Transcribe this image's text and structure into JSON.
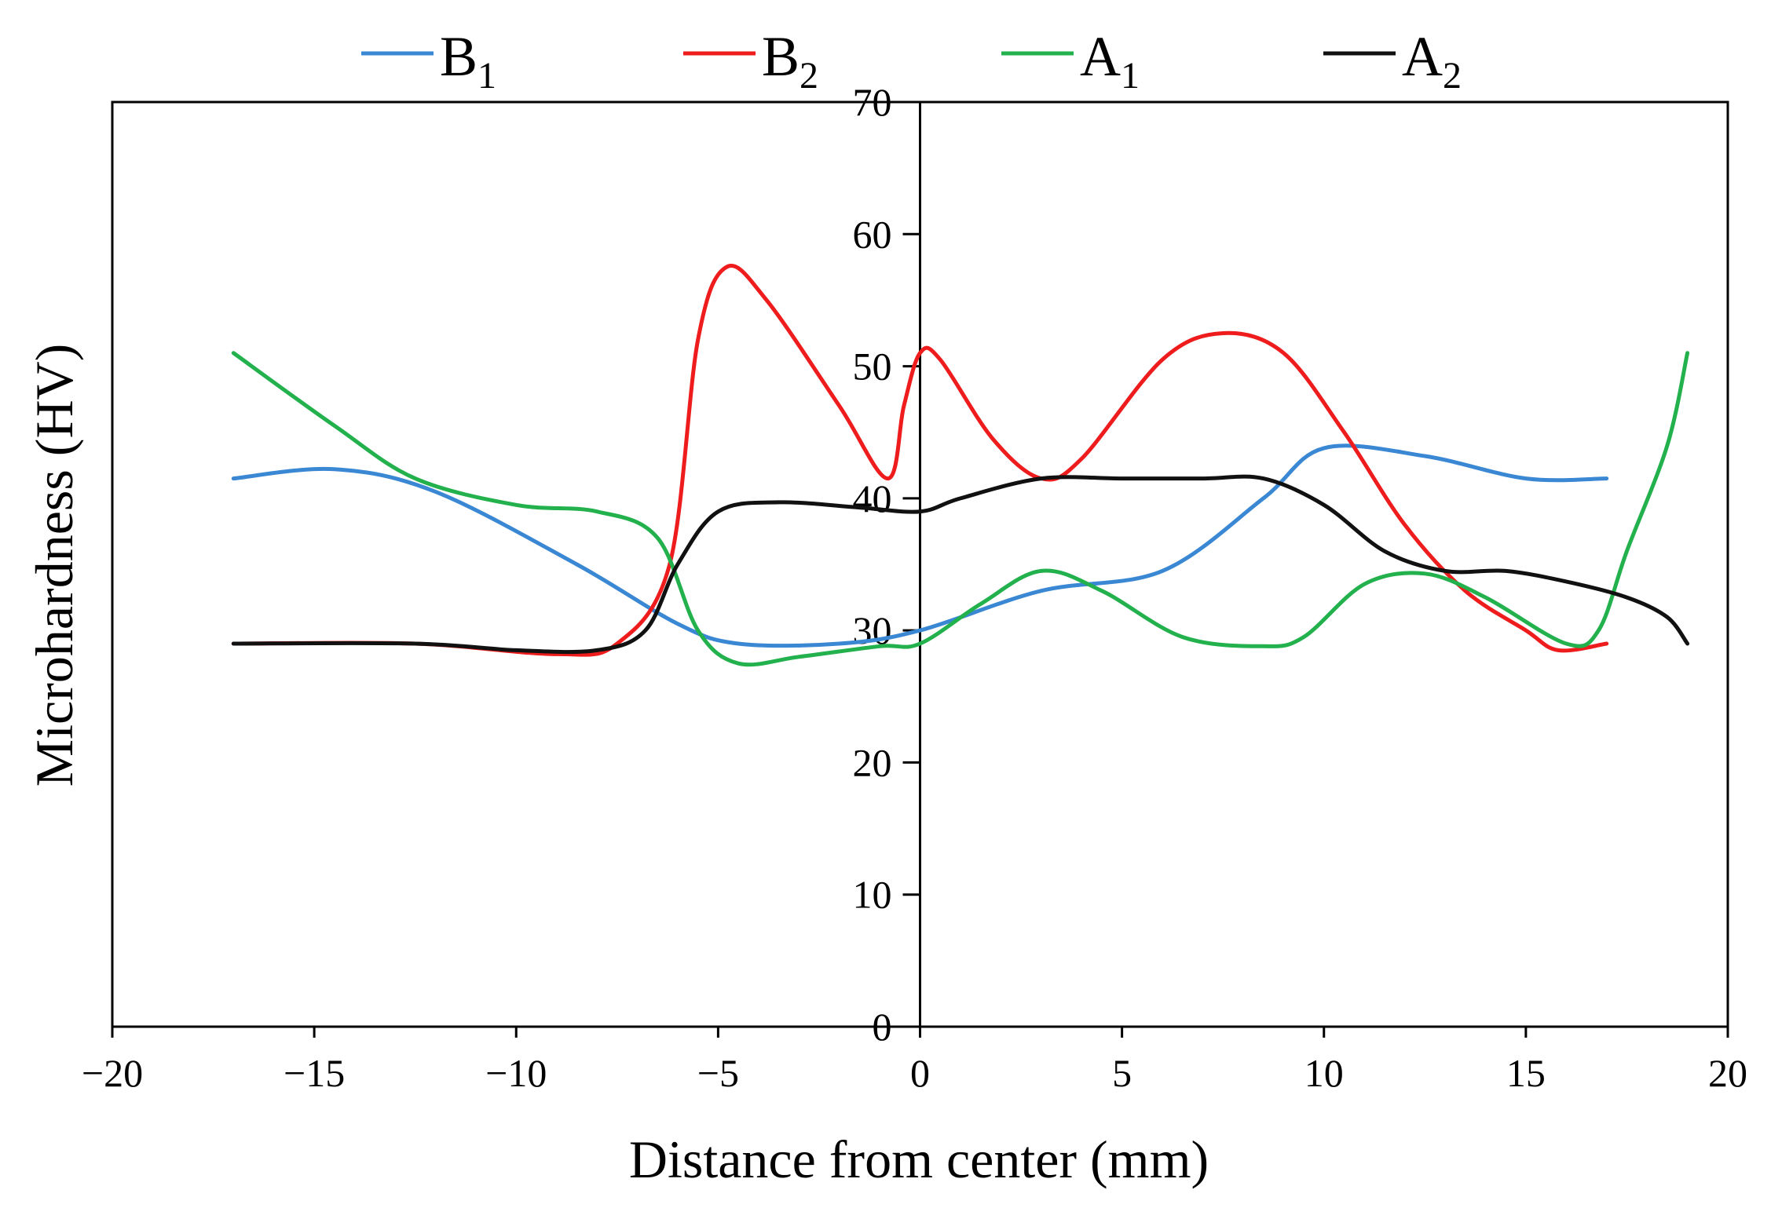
{
  "chart_data": {
    "type": "line",
    "title": "",
    "xlabel": "Distance  from center (mm)",
    "ylabel": "Microhardness (HV)",
    "xlim": [
      -20,
      20
    ],
    "ylim": [
      0,
      70
    ],
    "x_ticks": [
      -20,
      -15,
      -10,
      -5,
      0,
      5,
      10,
      15,
      20
    ],
    "x_tick_labels": [
      "−20",
      "−15",
      "−10",
      "−5",
      "0",
      "5",
      "10",
      "15",
      "20"
    ],
    "y_ticks": [
      0,
      10,
      20,
      30,
      40,
      50,
      60,
      70
    ],
    "y_tick_labels": [
      "0",
      "10",
      "20",
      "30",
      "40",
      "50",
      "60",
      "70"
    ],
    "grid": false,
    "legend_position": "top",
    "series": [
      {
        "name": "B",
        "subscript": "1",
        "color": "#3a87d4",
        "points": [
          [
            -17,
            41.5
          ],
          [
            -14.5,
            42.2
          ],
          [
            -12,
            40.5
          ],
          [
            -8.5,
            35
          ],
          [
            -6,
            30.5
          ],
          [
            -4.5,
            29
          ],
          [
            -2,
            29
          ],
          [
            0,
            30
          ],
          [
            3,
            33
          ],
          [
            6,
            34.5
          ],
          [
            8.5,
            40
          ],
          [
            10,
            43.8
          ],
          [
            12.5,
            43.2
          ],
          [
            15,
            41.5
          ],
          [
            17,
            41.5
          ]
        ]
      },
      {
        "name": "B",
        "subscript": "2",
        "color": "#ee1c1c",
        "points": [
          [
            -17,
            29
          ],
          [
            -12.5,
            29
          ],
          [
            -9,
            28.2
          ],
          [
            -7.5,
            29
          ],
          [
            -6.2,
            35
          ],
          [
            -5.5,
            52
          ],
          [
            -4.8,
            57.5
          ],
          [
            -3.8,
            55
          ],
          [
            -2,
            47
          ],
          [
            -0.8,
            41.5
          ],
          [
            -0.4,
            47
          ],
          [
            0,
            51
          ],
          [
            0.5,
            50.5
          ],
          [
            1.8,
            44.5
          ],
          [
            3,
            41.5
          ],
          [
            4,
            43
          ],
          [
            6,
            50.5
          ],
          [
            7.5,
            52.5
          ],
          [
            9,
            51
          ],
          [
            10.5,
            45
          ],
          [
            12,
            38
          ],
          [
            13.5,
            33
          ],
          [
            15,
            30
          ],
          [
            15.8,
            28.5
          ],
          [
            17,
            29
          ]
        ]
      },
      {
        "name": "A",
        "subscript": "1",
        "color": "#22b14c",
        "points": [
          [
            -17,
            51
          ],
          [
            -14.5,
            45.5
          ],
          [
            -12.5,
            41.5
          ],
          [
            -10,
            39.5
          ],
          [
            -8,
            39
          ],
          [
            -6.5,
            37
          ],
          [
            -5.5,
            30
          ],
          [
            -4.5,
            27.5
          ],
          [
            -3,
            28
          ],
          [
            -1,
            28.8
          ],
          [
            0,
            29
          ],
          [
            1.5,
            32
          ],
          [
            3,
            34.5
          ],
          [
            4.5,
            33
          ],
          [
            6.5,
            29.5
          ],
          [
            8.5,
            28.8
          ],
          [
            9.5,
            29.5
          ],
          [
            11,
            33.5
          ],
          [
            12.5,
            34.3
          ],
          [
            14,
            32.5
          ],
          [
            16,
            29
          ],
          [
            16.8,
            30
          ],
          [
            17.5,
            36
          ],
          [
            18.5,
            44
          ],
          [
            19,
            51
          ]
        ]
      },
      {
        "name": "A",
        "subscript": "2",
        "color": "#111111",
        "points": [
          [
            -17,
            29
          ],
          [
            -12.5,
            29
          ],
          [
            -10,
            28.5
          ],
          [
            -8,
            28.5
          ],
          [
            -6.8,
            30
          ],
          [
            -6,
            35
          ],
          [
            -5,
            39
          ],
          [
            -3.5,
            39.7
          ],
          [
            -1.5,
            39.3
          ],
          [
            0,
            39
          ],
          [
            1,
            40
          ],
          [
            3,
            41.5
          ],
          [
            5,
            41.5
          ],
          [
            7,
            41.5
          ],
          [
            8.5,
            41.5
          ],
          [
            10,
            39.5
          ],
          [
            11.5,
            36
          ],
          [
            13,
            34.5
          ],
          [
            14.5,
            34.5
          ],
          [
            16,
            33.7
          ],
          [
            17.5,
            32.5
          ],
          [
            18.5,
            31
          ],
          [
            19,
            29
          ]
        ]
      }
    ]
  }
}
